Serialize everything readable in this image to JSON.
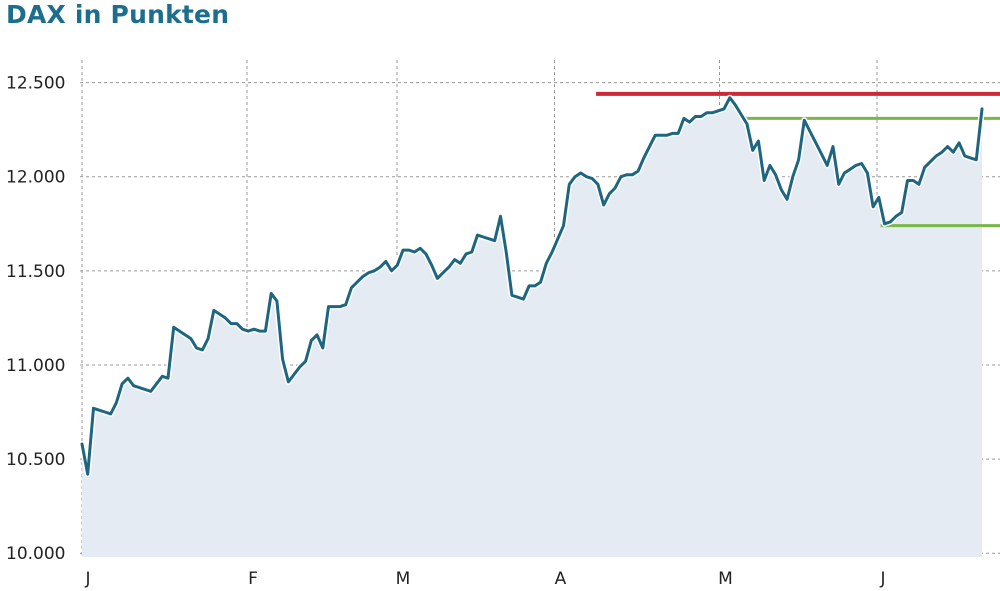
{
  "title": "DAX in Punkten",
  "chart_data": {
    "type": "line",
    "title": "DAX in Punkten",
    "xlabel": "",
    "ylabel": "",
    "ylim": [
      9980,
      12620
    ],
    "y_ticks": [
      {
        "value": 10000,
        "label": "10.000"
      },
      {
        "value": 10500,
        "label": "10.500"
      },
      {
        "value": 11000,
        "label": "11.000"
      },
      {
        "value": 11500,
        "label": "11.500"
      },
      {
        "value": 12000,
        "label": "12.000"
      },
      {
        "value": 12500,
        "label": "12.500"
      }
    ],
    "x_ticks": [
      {
        "index": 0,
        "label": "J"
      },
      {
        "index": 22,
        "label": "F"
      },
      {
        "index": 42,
        "label": "M"
      },
      {
        "index": 63,
        "label": "A"
      },
      {
        "index": 85,
        "label": "M"
      },
      {
        "index": 106,
        "label": "J"
      }
    ],
    "x_max_index": 120,
    "grid": true,
    "series": [
      {
        "values": [
          10580,
          10420,
          10770,
          10760,
          10750,
          10740,
          10800,
          10900,
          10930,
          10890,
          10880,
          10870,
          10860,
          10900,
          10940,
          10930,
          11200,
          11180,
          11160,
          11140,
          11090,
          11080,
          11140,
          11290,
          11270,
          11250,
          11220,
          11220,
          11190,
          11180,
          11190,
          11180,
          11180,
          11380,
          11340,
          11030,
          10910,
          10950,
          10990,
          11020,
          11130,
          11160,
          11090,
          11310,
          11310,
          11310,
          11320,
          11410,
          11440,
          11470,
          11490,
          11500,
          11520,
          11550,
          11500,
          11530,
          11610,
          11610,
          11600,
          11620,
          11590,
          11530,
          11460,
          11490,
          11520,
          11560,
          11540,
          11590,
          11600,
          11690,
          11680,
          11670,
          11660,
          11790,
          11600,
          11370,
          11360,
          11350,
          11420,
          11420,
          11440,
          11540,
          11600,
          11670,
          11740,
          11960,
          12000,
          12020,
          12000,
          11990,
          11960,
          11850,
          11910,
          11940,
          12000,
          12010,
          12010,
          12030,
          12100,
          12160,
          12220,
          12220,
          12220,
          12230,
          12230,
          12310,
          12290,
          12320,
          12320,
          12340,
          12340,
          12350,
          12360,
          12420,
          12380,
          12330,
          12280,
          12140,
          12190,
          11980,
          12060,
          12010,
          11930,
          11880,
          12000,
          12090,
          12300,
          12240,
          12180,
          12120,
          12060,
          12160,
          11960,
          12020,
          12040,
          12060,
          12070,
          12020,
          11840,
          11890,
          11750,
          11760,
          11790,
          11810,
          11980,
          11980,
          11960,
          12050,
          12080,
          12110,
          12130,
          12160,
          12130,
          12180,
          12110,
          12100,
          12090,
          12360
        ]
      }
    ],
    "reference_lines": [
      {
        "value": 12440,
        "from_index": 0.56,
        "to_index": 1.0,
        "color": "#cc2936"
      },
      {
        "value": 12310,
        "from_index": 0.72,
        "to_index": 1.0,
        "color": "#7ab648"
      },
      {
        "value": 11740,
        "from_index": 0.87,
        "to_index": 1.0,
        "color": "#7ab648"
      }
    ],
    "colors": {
      "line": "#1e6680",
      "area": "#e4ebf3",
      "grid": "#9a9a9a"
    }
  }
}
